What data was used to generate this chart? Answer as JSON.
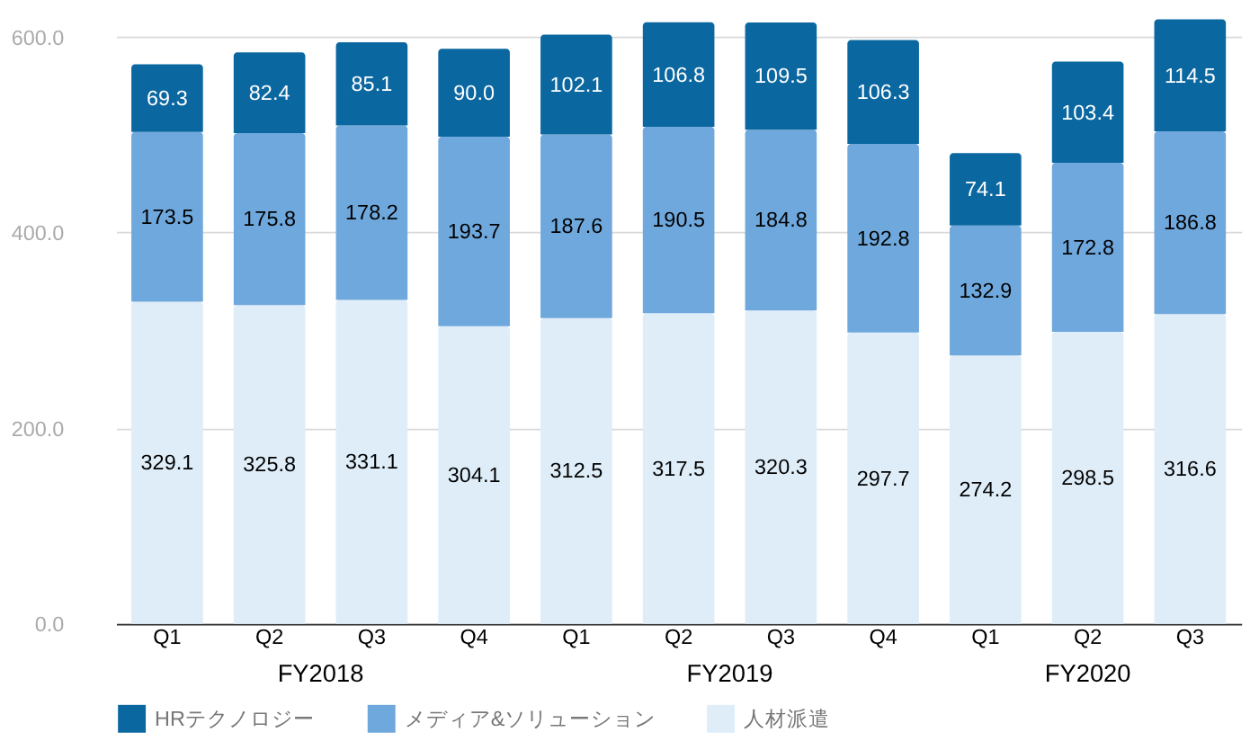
{
  "chart_data": {
    "type": "bar",
    "stacked": true,
    "categories": [
      "Q1",
      "Q2",
      "Q3",
      "Q4",
      "Q1",
      "Q2",
      "Q3",
      "Q4",
      "Q1",
      "Q2",
      "Q3"
    ],
    "series": [
      {
        "name": "人材派遣",
        "color": "#deedf8",
        "values": [
          329.1,
          325.8,
          331.1,
          304.1,
          312.5,
          317.5,
          320.3,
          297.7,
          274.2,
          298.5,
          316.6
        ],
        "value_labels": [
          "329.1",
          "325.8",
          "331.1",
          "304.1",
          "312.5",
          "317.5",
          "320.3",
          "297.7",
          "274.2",
          "298.5",
          "316.6"
        ]
      },
      {
        "name": "メディア&ソリューション",
        "color": "#6fa8dc",
        "values": [
          173.5,
          175.8,
          178.2,
          193.7,
          187.6,
          190.5,
          184.8,
          192.8,
          132.9,
          172.8,
          186.8
        ],
        "value_labels": [
          "173.5",
          "175.8",
          "178.2",
          "193.7",
          "187.6",
          "190.5",
          "184.8",
          "192.8",
          "132.9",
          "172.8",
          "186.8"
        ]
      },
      {
        "name": "HRテクノロジー",
        "color": "#0b67a0",
        "values": [
          69.3,
          82.4,
          85.1,
          90.0,
          102.1,
          106.8,
          109.5,
          106.3,
          74.1,
          103.4,
          114.5
        ],
        "value_labels": [
          "69.3",
          "82.4",
          "85.1",
          "90.0",
          "102.1",
          "106.8",
          "109.5",
          "106.3",
          "74.1",
          "103.4",
          "114.5"
        ]
      }
    ],
    "annotations": [
      "FY2018",
      "FY2019",
      "FY2020"
    ],
    "ylim": [
      0,
      620
    ],
    "yticks": [
      {
        "value": 0,
        "label": "0.0"
      },
      {
        "value": 200,
        "label": "200.0"
      },
      {
        "value": 400,
        "label": "400.0"
      },
      {
        "value": 600,
        "label": "600.0"
      }
    ],
    "grid": "y",
    "legend": "bottom"
  }
}
